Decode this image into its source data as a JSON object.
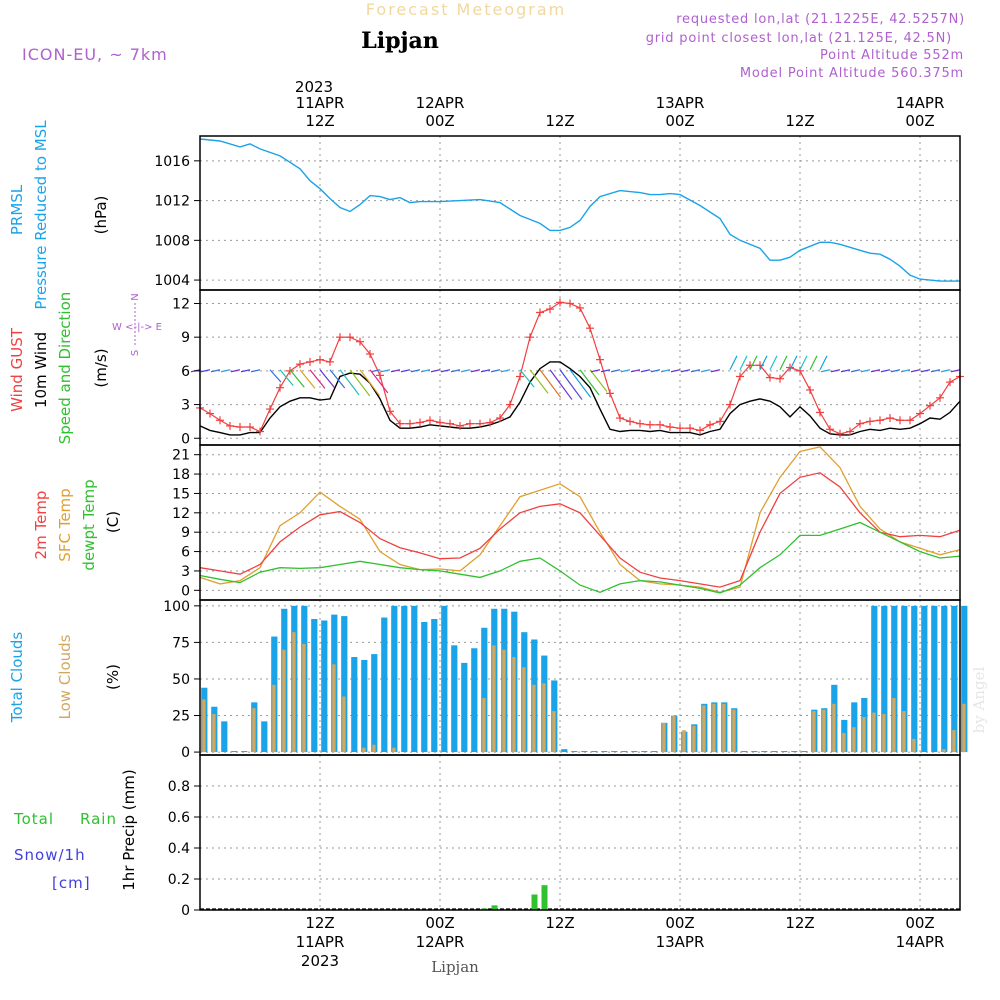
{
  "header": {
    "title": "Forecast Meteogram",
    "location": "Lipjan",
    "model": "ICON-EU, ~ 7km",
    "requested": "requested lon,lat (21.1225E, 42.5257N)",
    "grid_point": "grid point closest lon,lat (21.125E, 42.5N)",
    "point_alt": "Point Altitude 552m",
    "model_alt": "Model Point Altitude 560.375m",
    "watermark": "by Angel",
    "footer_location": "Lipjan"
  },
  "time_axis": {
    "top_year": "2023",
    "top": [
      {
        "h": 12,
        "l1": "11APR",
        "l2": "12Z"
      },
      {
        "h": 24,
        "l1": "12APR",
        "l2": "00Z"
      },
      {
        "h": 36,
        "l1": "",
        "l2": "12Z"
      },
      {
        "h": 48,
        "l1": "13APR",
        "l2": "00Z"
      },
      {
        "h": 60,
        "l1": "",
        "l2": "12Z"
      },
      {
        "h": 72,
        "l1": "14APR",
        "l2": "00Z"
      }
    ],
    "bottom": [
      {
        "h": 12,
        "l1": "12Z",
        "l2": "11APR",
        "l3": "2023"
      },
      {
        "h": 24,
        "l1": "00Z",
        "l2": "12APR",
        "l3": ""
      },
      {
        "h": 36,
        "l1": "12Z",
        "l2": "",
        "l3": ""
      },
      {
        "h": 48,
        "l1": "00Z",
        "l2": "13APR",
        "l3": ""
      },
      {
        "h": 60,
        "l1": "12Z",
        "l2": "",
        "l3": ""
      },
      {
        "h": 72,
        "l1": "00Z",
        "l2": "14APR",
        "l3": ""
      }
    ]
  },
  "panels": {
    "pressure": {
      "label1": "PRMSL",
      "label2": "Pressure Reduced to MSL",
      "unit": "(hPa)",
      "ticks": [
        1004,
        1008,
        1012,
        1016
      ],
      "ylim": [
        1003,
        1018.5
      ],
      "color": "#1aa3e8"
    },
    "wind": {
      "label_gust": "Wind GUST",
      "label_wind": "10m Wind",
      "label_dir": "Speed and Direction",
      "unit": "(m/s)",
      "compass_n": "N",
      "compass_s": "S",
      "compass_we": "W <-|-> E",
      "ticks": [
        0,
        3,
        6,
        9,
        12
      ],
      "ylim": [
        -0.6,
        13.2
      ],
      "gust_color": "#f04040",
      "wind_color": "#000000"
    },
    "temp": {
      "label_2m": "2m Temp",
      "label_sfc": "SFC Temp",
      "label_dew": "dewpt Temp",
      "unit": "(C)",
      "ticks": [
        0,
        3,
        6,
        9,
        12,
        15,
        18,
        21
      ],
      "ylim": [
        -1.5,
        22.5
      ],
      "t2m_color": "#f04040",
      "sfc_color": "#e0a030",
      "dew_color": "#30c030"
    },
    "clouds": {
      "label_total": "Total Clouds",
      "label_low": "Low Clouds",
      "unit": "(%)",
      "ticks": [
        0,
        25,
        50,
        75,
        100
      ],
      "ylim": [
        -2,
        104
      ],
      "total_color": "#1aa3e8",
      "low_color": "#d2a860"
    },
    "precip": {
      "label_total": "Total",
      "label_rain": "Rain",
      "label_snow": "Snow/1h",
      "label_cm": "[cm]",
      "ylabel": "1hr Precip (mm)",
      "ticks": [
        "0",
        "0.2",
        "0.4",
        "0.6",
        "0.8"
      ],
      "tick_values": [
        0,
        0.2,
        0.4,
        0.6,
        0.8
      ],
      "ylim": [
        0,
        1.0
      ],
      "rain_color": "#30c030",
      "snow_color": "#4040e0"
    }
  },
  "chart_data": [
    {
      "type": "line",
      "name": "pressure",
      "x": [
        0,
        2,
        4,
        5,
        6,
        8,
        10,
        11,
        12,
        13,
        14,
        15,
        16,
        17,
        18,
        19,
        20,
        21,
        22,
        24,
        26,
        28,
        30,
        32,
        34,
        35,
        36,
        37,
        38,
        39,
        40,
        42,
        44,
        45,
        46,
        47,
        48,
        50,
        52,
        53,
        54,
        56,
        57,
        58,
        59,
        60,
        62,
        63,
        64,
        65,
        66,
        67,
        68,
        69,
        70,
        71,
        72,
        73,
        74,
        75,
        76
      ],
      "series": [
        {
          "values": [
            1018.2,
            1018.0,
            1017.4,
            1017.7,
            1017.2,
            1016.5,
            1015.2,
            1014.0,
            1013.2,
            1012.2,
            1011.3,
            1010.9,
            1011.6,
            1012.5,
            1012.4,
            1012.1,
            1012.3,
            1011.8,
            1011.9,
            1011.9,
            1012.0,
            1012.1,
            1011.8,
            1010.5,
            1009.7,
            1009.0,
            1009.0,
            1009.3,
            1010.0,
            1011.4,
            1012.4,
            1013.0,
            1012.8,
            1012.6,
            1012.6,
            1012.7,
            1012.6,
            1011.5,
            1010.2,
            1008.6,
            1008.0,
            1007.2,
            1006.0,
            1006.0,
            1006.3,
            1007.0,
            1007.8,
            1007.8,
            1007.6,
            1007.3,
            1007.0,
            1006.7,
            1006.6,
            1006.1,
            1005.4,
            1004.5,
            1004.1,
            1004.0,
            1003.9,
            1003.9,
            1003.9
          ]
        }
      ]
    },
    {
      "type": "line",
      "name": "wind",
      "x": [
        0,
        1,
        2,
        3,
        4,
        5,
        6,
        7,
        8,
        9,
        10,
        11,
        12,
        13,
        14,
        15,
        16,
        17,
        18,
        19,
        20,
        21,
        22,
        23,
        24,
        25,
        26,
        27,
        28,
        29,
        30,
        31,
        32,
        33,
        34,
        35,
        36,
        37,
        38,
        39,
        40,
        41,
        42,
        43,
        44,
        45,
        46,
        47,
        48,
        49,
        50,
        51,
        52,
        53,
        54,
        55,
        56,
        57,
        58,
        59,
        60,
        61,
        62,
        63,
        64,
        65,
        66,
        67,
        68,
        69,
        70,
        71,
        72,
        73,
        74,
        75,
        76
      ],
      "series": [
        {
          "name": "Wind GUST",
          "values": [
            2.7,
            2.2,
            1.6,
            1.1,
            1.0,
            1.0,
            0.6,
            2.6,
            4.5,
            6.0,
            6.6,
            6.8,
            7.0,
            6.8,
            9.0,
            9.0,
            8.6,
            7.5,
            5.6,
            2.4,
            1.3,
            1.3,
            1.4,
            1.6,
            1.4,
            1.3,
            1.1,
            1.3,
            1.3,
            1.4,
            1.8,
            3.0,
            5.5,
            9.0,
            11.2,
            11.5,
            12.1,
            12.0,
            11.6,
            9.8,
            7.0,
            4.0,
            1.8,
            1.5,
            1.3,
            1.2,
            1.2,
            1.0,
            0.9,
            0.9,
            0.7,
            1.2,
            1.5,
            3.0,
            5.5,
            6.5,
            6.5,
            5.4,
            5.3,
            6.3,
            6.0,
            4.3,
            2.3,
            0.8,
            0.4,
            0.6,
            1.3,
            1.5,
            1.6,
            1.8,
            1.6,
            1.6,
            2.2,
            2.9,
            3.6,
            5.0,
            5.5
          ]
        },
        {
          "name": "10m Wind",
          "values": [
            1.1,
            0.7,
            0.5,
            0.3,
            0.3,
            0.5,
            0.5,
            1.8,
            2.8,
            3.3,
            3.6,
            3.6,
            3.4,
            3.5,
            5.5,
            5.8,
            5.7,
            4.9,
            3.5,
            1.6,
            0.9,
            0.9,
            1.0,
            1.2,
            1.1,
            1.0,
            0.9,
            0.9,
            1.0,
            1.2,
            1.5,
            1.9,
            3.2,
            5.0,
            6.2,
            6.8,
            6.8,
            6.2,
            5.5,
            4.5,
            2.6,
            0.8,
            0.6,
            0.7,
            0.7,
            0.6,
            0.7,
            0.5,
            0.5,
            0.5,
            0.3,
            0.6,
            0.8,
            2.2,
            3.0,
            3.3,
            3.5,
            3.3,
            2.8,
            1.9,
            2.8,
            2.0,
            0.9,
            0.4,
            0.3,
            0.3,
            0.6,
            0.8,
            0.7,
            0.9,
            0.8,
            0.9,
            1.3,
            1.8,
            1.7,
            2.3,
            3.3
          ]
        }
      ]
    },
    {
      "type": "line",
      "name": "temperature",
      "x": [
        0,
        2,
        4,
        6,
        8,
        10,
        12,
        14,
        16,
        18,
        20,
        22,
        24,
        26,
        28,
        30,
        32,
        34,
        36,
        38,
        40,
        42,
        44,
        46,
        48,
        50,
        52,
        54,
        56,
        58,
        60,
        62,
        64,
        66,
        68,
        70,
        72,
        74,
        76
      ],
      "series": [
        {
          "name": "2m Temp",
          "values": [
            3.5,
            3.0,
            2.5,
            4.0,
            7.5,
            9.8,
            11.7,
            12.2,
            10.5,
            8.0,
            6.6,
            5.8,
            4.9,
            5.0,
            6.5,
            9.5,
            12.0,
            13.0,
            13.4,
            12.0,
            8.5,
            5.0,
            2.8,
            1.9,
            1.5,
            1.0,
            0.5,
            1.5,
            9.0,
            15.0,
            17.5,
            18.2,
            16.0,
            12.0,
            9.0,
            8.3,
            8.5,
            8.3,
            9.3
          ]
        },
        {
          "name": "SFC Temp",
          "values": [
            2.0,
            1.0,
            1.5,
            3.5,
            10.0,
            12.0,
            15.2,
            13.0,
            11.0,
            6.0,
            4.0,
            3.2,
            3.3,
            3.0,
            5.5,
            10.0,
            14.5,
            15.5,
            16.5,
            14.5,
            9.0,
            4.0,
            1.5,
            1.0,
            0.8,
            0.5,
            -0.3,
            0.5,
            12.0,
            17.5,
            21.5,
            22.2,
            19.0,
            13.0,
            9.5,
            7.5,
            6.5,
            5.5,
            6.3
          ]
        },
        {
          "name": "dewpt Temp",
          "values": [
            2.3,
            1.7,
            1.2,
            2.8,
            3.5,
            3.4,
            3.5,
            4.0,
            4.5,
            4.0,
            3.5,
            3.2,
            3.0,
            2.5,
            2.0,
            3.0,
            4.5,
            5.0,
            3.0,
            0.8,
            -0.3,
            1.0,
            1.5,
            1.3,
            0.8,
            0.3,
            -0.4,
            0.8,
            3.5,
            5.5,
            8.5,
            8.5,
            9.5,
            10.5,
            9.0,
            7.5,
            6.0,
            5.0,
            5.3
          ]
        }
      ]
    },
    {
      "type": "bar",
      "name": "clouds",
      "x": [
        0,
        1,
        2,
        3,
        4,
        5,
        6,
        7,
        8,
        9,
        10,
        11,
        12,
        13,
        14,
        15,
        16,
        17,
        18,
        19,
        20,
        21,
        22,
        23,
        24,
        25,
        26,
        27,
        28,
        29,
        30,
        31,
        32,
        33,
        34,
        35,
        36,
        37,
        38,
        39,
        40,
        41,
        42,
        43,
        44,
        45,
        46,
        47,
        48,
        49,
        50,
        51,
        52,
        53,
        54,
        55,
        56,
        57,
        58,
        59,
        60,
        61,
        62,
        63,
        64,
        65,
        66,
        67,
        68,
        69,
        70,
        71,
        72,
        73,
        74,
        75,
        76
      ],
      "series": [
        {
          "name": "Total Clouds",
          "values": [
            44,
            31,
            21,
            0,
            0,
            34,
            21,
            79,
            98,
            100,
            100,
            91,
            90,
            94,
            93,
            65,
            63,
            67,
            92,
            100,
            100,
            100,
            89,
            91,
            100,
            73,
            61,
            71,
            85,
            98,
            98,
            96,
            82,
            77,
            66,
            49,
            2,
            0,
            0,
            0,
            0,
            0,
            0,
            0,
            0,
            0,
            20,
            25,
            14,
            19,
            33,
            34,
            34,
            30,
            0,
            0,
            0,
            0,
            0,
            0,
            0,
            29,
            30,
            46,
            22,
            34,
            37,
            100,
            100,
            100,
            100,
            100,
            100,
            100,
            100,
            100,
            100
          ]
        },
        {
          "name": "Low Clouds",
          "values": [
            36,
            26,
            0,
            0,
            0,
            30,
            0,
            46,
            70,
            82,
            74,
            0,
            0,
            60,
            38,
            0,
            3,
            5,
            0,
            3,
            0,
            0,
            0,
            0,
            0,
            0,
            0,
            0,
            37,
            73,
            70,
            65,
            58,
            46,
            47,
            28,
            0,
            0,
            0,
            0,
            0,
            0,
            0,
            0,
            0,
            0,
            20,
            25,
            15,
            18,
            32,
            33,
            33,
            29,
            0,
            0,
            0,
            0,
            0,
            0,
            0,
            28,
            29,
            33,
            13,
            17,
            24,
            27,
            26,
            37,
            28,
            9,
            0,
            0,
            2,
            15,
            33
          ]
        }
      ]
    },
    {
      "type": "bar",
      "name": "precip",
      "x": [
        0,
        1,
        2,
        3,
        4,
        5,
        6,
        7,
        8,
        9,
        10,
        11,
        12,
        13,
        14,
        15,
        16,
        17,
        18,
        19,
        20,
        21,
        22,
        23,
        24,
        25,
        26,
        27,
        28,
        29,
        30,
        31,
        32,
        33,
        34,
        35,
        36,
        37,
        38,
        39,
        40,
        41,
        42,
        43,
        44,
        45,
        46,
        47,
        48,
        49,
        50,
        51,
        52,
        53,
        54,
        55,
        56,
        57,
        58,
        59,
        60,
        61,
        62,
        63,
        64,
        65,
        66,
        67,
        68,
        69,
        70,
        71,
        72,
        73,
        74,
        75,
        76
      ],
      "series": [
        {
          "name": "Rain",
          "values": [
            0,
            0,
            0,
            0,
            0,
            0,
            0,
            0,
            0,
            0,
            0,
            0,
            0,
            0,
            0,
            0,
            0,
            0,
            0,
            0,
            0,
            0,
            0,
            0,
            0,
            0,
            0,
            0,
            0.01,
            0.03,
            0,
            0,
            0,
            0.1,
            0.16,
            0,
            0,
            0,
            0,
            0,
            0,
            0,
            0,
            0,
            0,
            0,
            0,
            0,
            0,
            0,
            0,
            0,
            0,
            0,
            0,
            0,
            0,
            0,
            0,
            0,
            0,
            0,
            0,
            0,
            0,
            0,
            0,
            0,
            0,
            0,
            0,
            0,
            0,
            0,
            0,
            0,
            0
          ]
        }
      ]
    }
  ]
}
